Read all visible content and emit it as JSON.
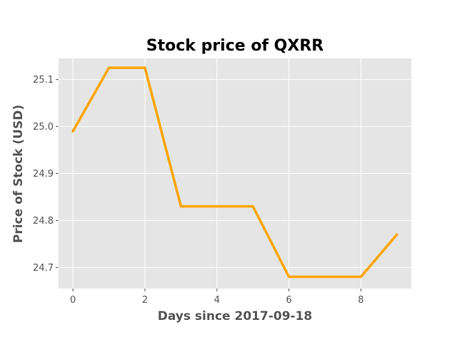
{
  "chart_data": {
    "type": "line",
    "title": "Stock price of QXRR",
    "xlabel": "Days since 2017-09-18",
    "ylabel": "Price of Stock (USD)",
    "x": [
      0,
      1,
      2,
      3,
      4,
      5,
      6,
      7,
      8,
      9
    ],
    "series": [
      {
        "values": [
          24.99,
          25.125,
          25.125,
          24.83,
          24.83,
          24.83,
          24.68,
          24.68,
          24.68,
          24.77
        ],
        "color": "#FFA500"
      }
    ],
    "xlim": [
      -0.4,
      9.4
    ],
    "ylim": [
      24.655,
      25.145
    ],
    "xticks": [
      0,
      2,
      4,
      6,
      8
    ],
    "xtick_labels": [
      "0",
      "2",
      "4",
      "6",
      "8"
    ],
    "yticks": [
      24.7,
      24.8,
      24.9,
      25.0,
      25.1
    ],
    "ytick_labels": [
      "24.7",
      "24.8",
      "24.9",
      "25.0",
      "25.1"
    ],
    "grid": true,
    "background": "#E5E5E5"
  }
}
